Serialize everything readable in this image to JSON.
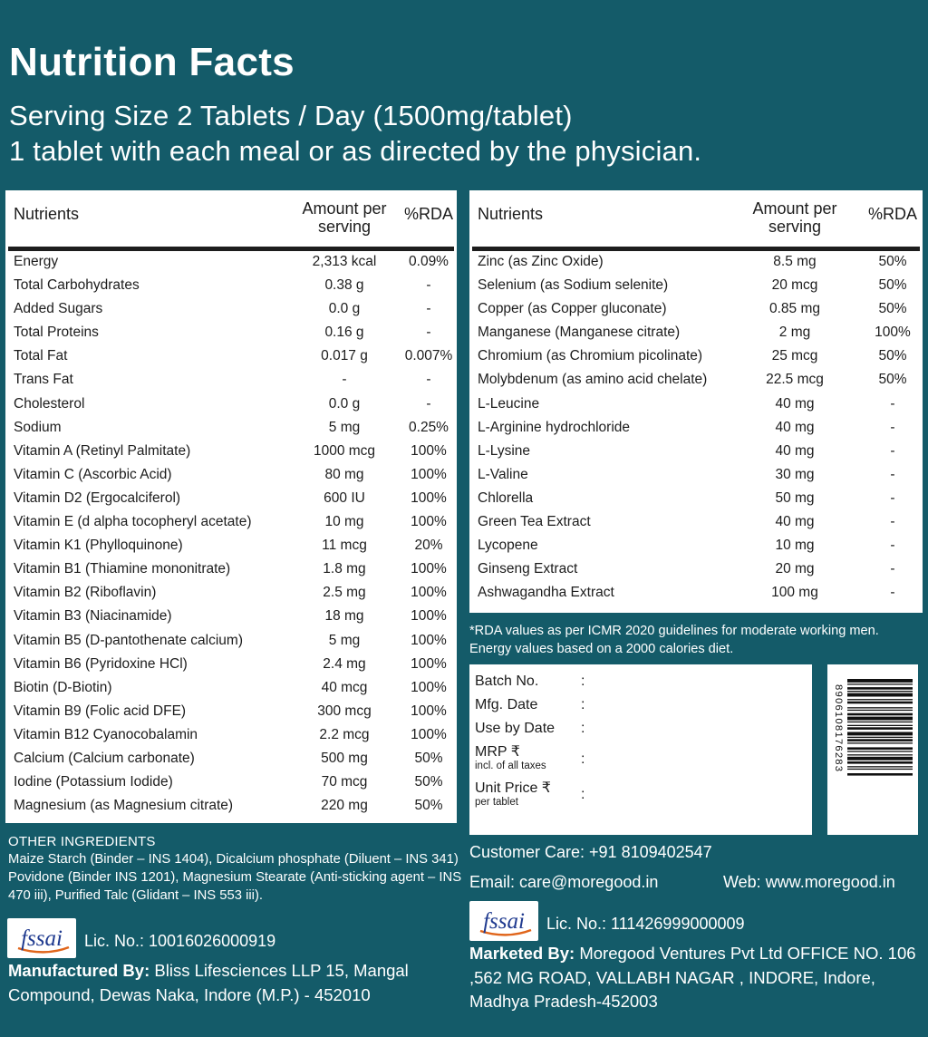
{
  "header": {
    "title": "Nutrition Facts",
    "serving_line": "Serving Size 2 Tablets / Day (1500mg/tablet)",
    "directions_line": "1 tablet with each meal or as directed by the physician."
  },
  "table_headers": {
    "nutrients": "Nutrients",
    "amount_line1": "Amount per",
    "amount_line2": "serving",
    "rda": "%RDA"
  },
  "left_table": [
    {
      "name": "Energy",
      "amount": "2,313 kcal",
      "rda": "0.09%"
    },
    {
      "name": "Total Carbohydrates",
      "amount": "0.38 g",
      "rda": "-"
    },
    {
      "name": "Added Sugars",
      "amount": "0.0 g",
      "rda": "-"
    },
    {
      "name": "Total Proteins",
      "amount": "0.16 g",
      "rda": "-"
    },
    {
      "name": "Total Fat",
      "amount": "0.017 g",
      "rda": "0.007%"
    },
    {
      "name": "Trans Fat",
      "amount": "-",
      "rda": "-"
    },
    {
      "name": "Cholesterol",
      "amount": "0.0 g",
      "rda": "-"
    },
    {
      "name": "Sodium",
      "amount": "5 mg",
      "rda": "0.25%"
    },
    {
      "name": "Vitamin A (Retinyl Palmitate)",
      "amount": "1000 mcg",
      "rda": "100%"
    },
    {
      "name": "Vitamin C (Ascorbic Acid)",
      "amount": "80 mg",
      "rda": "100%"
    },
    {
      "name": "Vitamin D2 (Ergocalciferol)",
      "amount": "600 IU",
      "rda": "100%"
    },
    {
      "name": "Vitamin E (d alpha tocopheryl acetate)",
      "amount": "10 mg",
      "rda": "100%"
    },
    {
      "name": "Vitamin K1 (Phylloquinone)",
      "amount": "11 mcg",
      "rda": "20%"
    },
    {
      "name": "Vitamin B1 (Thiamine mononitrate)",
      "amount": "1.8 mg",
      "rda": "100%"
    },
    {
      "name": "Vitamin B2 (Riboflavin)",
      "amount": "2.5 mg",
      "rda": "100%"
    },
    {
      "name": "Vitamin B3 (Niacinamide)",
      "amount": "18 mg",
      "rda": "100%"
    },
    {
      "name": "Vitamin B5 (D-pantothenate calcium)",
      "amount": "5 mg",
      "rda": "100%"
    },
    {
      "name": "Vitamin B6 (Pyridoxine HCl)",
      "amount": "2.4 mg",
      "rda": "100%"
    },
    {
      "name": "Biotin (D-Biotin)",
      "amount": "40 mcg",
      "rda": "100%"
    },
    {
      "name": "Vitamin B9 (Folic acid DFE)",
      "amount": "300 mcg",
      "rda": "100%"
    },
    {
      "name": "Vitamin B12 Cyanocobalamin",
      "amount": "2.2 mcg",
      "rda": "100%"
    },
    {
      "name": "Calcium (Calcium carbonate)",
      "amount": "500 mg",
      "rda": "50%"
    },
    {
      "name": "Iodine (Potassium Iodide)",
      "amount": "70 mcg",
      "rda": "50%"
    },
    {
      "name": "Magnesium (as Magnesium citrate)",
      "amount": "220 mg",
      "rda": "50%"
    }
  ],
  "right_table": [
    {
      "name": "Zinc (as Zinc Oxide)",
      "amount": "8.5 mg",
      "rda": "50%"
    },
    {
      "name": "Selenium (as Sodium selenite)",
      "amount": "20 mcg",
      "rda": "50%"
    },
    {
      "name": "Copper (as Copper gluconate)",
      "amount": "0.85 mg",
      "rda": "50%"
    },
    {
      "name": "Manganese (Manganese citrate)",
      "amount": "2 mg",
      "rda": "100%"
    },
    {
      "name": "Chromium (as Chromium picolinate)",
      "amount": "25 mcg",
      "rda": "50%"
    },
    {
      "name": "Molybdenum (as amino acid chelate)",
      "amount": "22.5 mcg",
      "rda": "50%"
    },
    {
      "name": "L-Leucine",
      "amount": "40 mg",
      "rda": "-"
    },
    {
      "name": "L-Arginine hydrochloride",
      "amount": "40 mg",
      "rda": "-"
    },
    {
      "name": "L-Lysine",
      "amount": "40 mg",
      "rda": "-"
    },
    {
      "name": "L-Valine",
      "amount": "30 mg",
      "rda": "-"
    },
    {
      "name": "Chlorella",
      "amount": "50 mg",
      "rda": "-"
    },
    {
      "name": "Green Tea Extract",
      "amount": "40 mg",
      "rda": "-"
    },
    {
      "name": "Lycopene",
      "amount": "10 mg",
      "rda": "-"
    },
    {
      "name": "Ginseng Extract",
      "amount": "20 mg",
      "rda": "-"
    },
    {
      "name": "Ashwagandha Extract",
      "amount": "100 mg",
      "rda": "-"
    }
  ],
  "rda_note": "*RDA values as per ICMR 2020 guidelines for moderate working men. Energy values based on a 2000 calories diet.",
  "batch_box": {
    "batch_no": "Batch No.",
    "mfg_date": "Mfg. Date",
    "use_by": "Use by Date",
    "mrp": "MRP ₹",
    "mrp_sub": "incl. of all taxes",
    "unit_price": "Unit Price ₹",
    "unit_price_sub": "per tablet",
    "colon": ":"
  },
  "barcode": {
    "digits": "8906108176283"
  },
  "other_ingredients": {
    "title": "OTHER INGREDIENTS",
    "text": "Maize Starch (Binder – INS 1404), Dicalcium phosphate (Diluent – INS 341) Povidone (Binder INS 1201), Magnesium Stearate (Anti-sticking agent – INS 470 iii), Purified Talc (Glidant – INS 553 iii)."
  },
  "fssai_logo_text": "fssai",
  "manufacturer": {
    "license": "Lic. No.: 10016026000919",
    "label": "Manufactured By:",
    "address": " Bliss Lifesciences LLP 15, Mangal Compound, Dewas Naka, Indore (M.P.) - 452010"
  },
  "contact": {
    "customer_care": "Customer Care: +91 8109402547",
    "email": "Email: care@moregood.in",
    "web": "Web: www.moregood.in"
  },
  "marketer": {
    "license": "Lic. No.: 111426999000009",
    "label": "Marketed By:",
    "address": " Moregood Ventures Pvt Ltd OFFICE NO. 106 ,562 MG ROAD, VALLABH NAGAR , INDORE, Indore, Madhya Pradesh-452003"
  },
  "colors": {
    "background": "#145b69",
    "panel": "#ffffff",
    "fssai_blue": "#1f3a8f",
    "fssai_orange": "#e0651b"
  }
}
